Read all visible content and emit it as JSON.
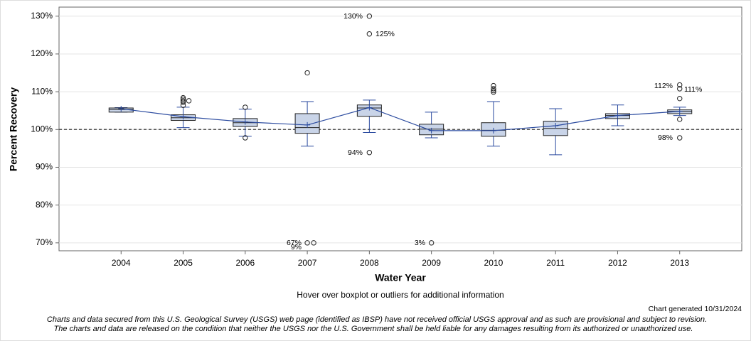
{
  "chart_data": {
    "type": "box",
    "y_label": "Percent Recovery",
    "x_label": "Water Year",
    "categories": [
      "2004",
      "2005",
      "2006",
      "2007",
      "2008",
      "2009",
      "2010",
      "2011",
      "2012",
      "2013"
    ],
    "boxes": [
      {
        "min": 104.6,
        "q1": 104.6,
        "median": 105.3,
        "q3": 105.7,
        "max": 105.8,
        "mean": 105.5,
        "outliers": []
      },
      {
        "min": 100.5,
        "q1": 102.4,
        "median": 103.1,
        "q3": 103.9,
        "max": 105.9,
        "mean": 103.4,
        "outliers": [
          108.4,
          108.0,
          107.6,
          107.2,
          106.4,
          107.6
        ]
      },
      {
        "min": 98.2,
        "q1": 100.8,
        "median": 101.8,
        "q3": 102.9,
        "max": 105.4,
        "mean": 102.0,
        "outliers": [
          105.9,
          97.8
        ]
      },
      {
        "min": 95.6,
        "q1": 99.0,
        "median": 100.5,
        "q3": 104.2,
        "max": 107.4,
        "mean": 101.2,
        "outliers": [
          115.0,
          70,
          70
        ]
      },
      {
        "min": 99.2,
        "q1": 103.5,
        "median": 105.7,
        "q3": 106.5,
        "max": 107.8,
        "mean": 105.8,
        "outliers": [
          130.0,
          125.3,
          93.9
        ]
      },
      {
        "min": 97.8,
        "q1": 98.6,
        "median": 100.1,
        "q3": 101.4,
        "max": 104.6,
        "mean": 99.7,
        "outliers": [
          70
        ]
      },
      {
        "min": 95.6,
        "q1": 98.2,
        "median": 99.8,
        "q3": 101.8,
        "max": 107.4,
        "mean": 99.7,
        "outliers": [
          111.6,
          110.8,
          110.3,
          109.9
        ]
      },
      {
        "min": 93.3,
        "q1": 98.4,
        "median": 100.3,
        "q3": 102.2,
        "max": 105.5,
        "mean": 101.0,
        "outliers": []
      },
      {
        "min": 101.0,
        "q1": 102.9,
        "median": 103.7,
        "q3": 104.2,
        "max": 106.5,
        "mean": 103.7,
        "outliers": []
      },
      {
        "min": 103.7,
        "q1": 104.2,
        "median": 104.8,
        "q3": 105.2,
        "max": 105.9,
        "mean": 104.8,
        "outliers": [
          111.8,
          110.8,
          108.2,
          102.7,
          97.8
        ]
      }
    ],
    "box_color": "#c9d4e8",
    "line_color": "#2a4a9f",
    "reference_line": 100,
    "annotations": [
      "130%",
      "125%",
      "67%",
      "9%",
      "94%",
      "3%",
      "112%",
      "111%",
      "98%"
    ],
    "ylim": [
      67.9,
      132.4
    ],
    "yticks": [
      {
        "value": 70,
        "label": "70%"
      },
      {
        "value": 80,
        "label": "80%"
      },
      {
        "value": 90,
        "label": "90%"
      },
      {
        "value": 100,
        "label": "100%"
      },
      {
        "value": 110,
        "label": "110%"
      },
      {
        "value": 120,
        "label": "120%"
      },
      {
        "value": 130,
        "label": "130%"
      }
    ],
    "grid": true,
    "hover_note": "Hover over boxplot or outliers for additional information",
    "generated": "Chart generated 10/31/2024",
    "disclaimer": [
      "Charts and data secured from this U.S. Geological Survey (USGS) web page (identified as IBSP) have not received official USGS approval and as such are provisional and subject to revision.",
      "The charts and data are released on the condition that neither the USGS nor the U.S. Government shall be held liable for any damages resulting from its authorized or unauthorized use."
    ]
  }
}
